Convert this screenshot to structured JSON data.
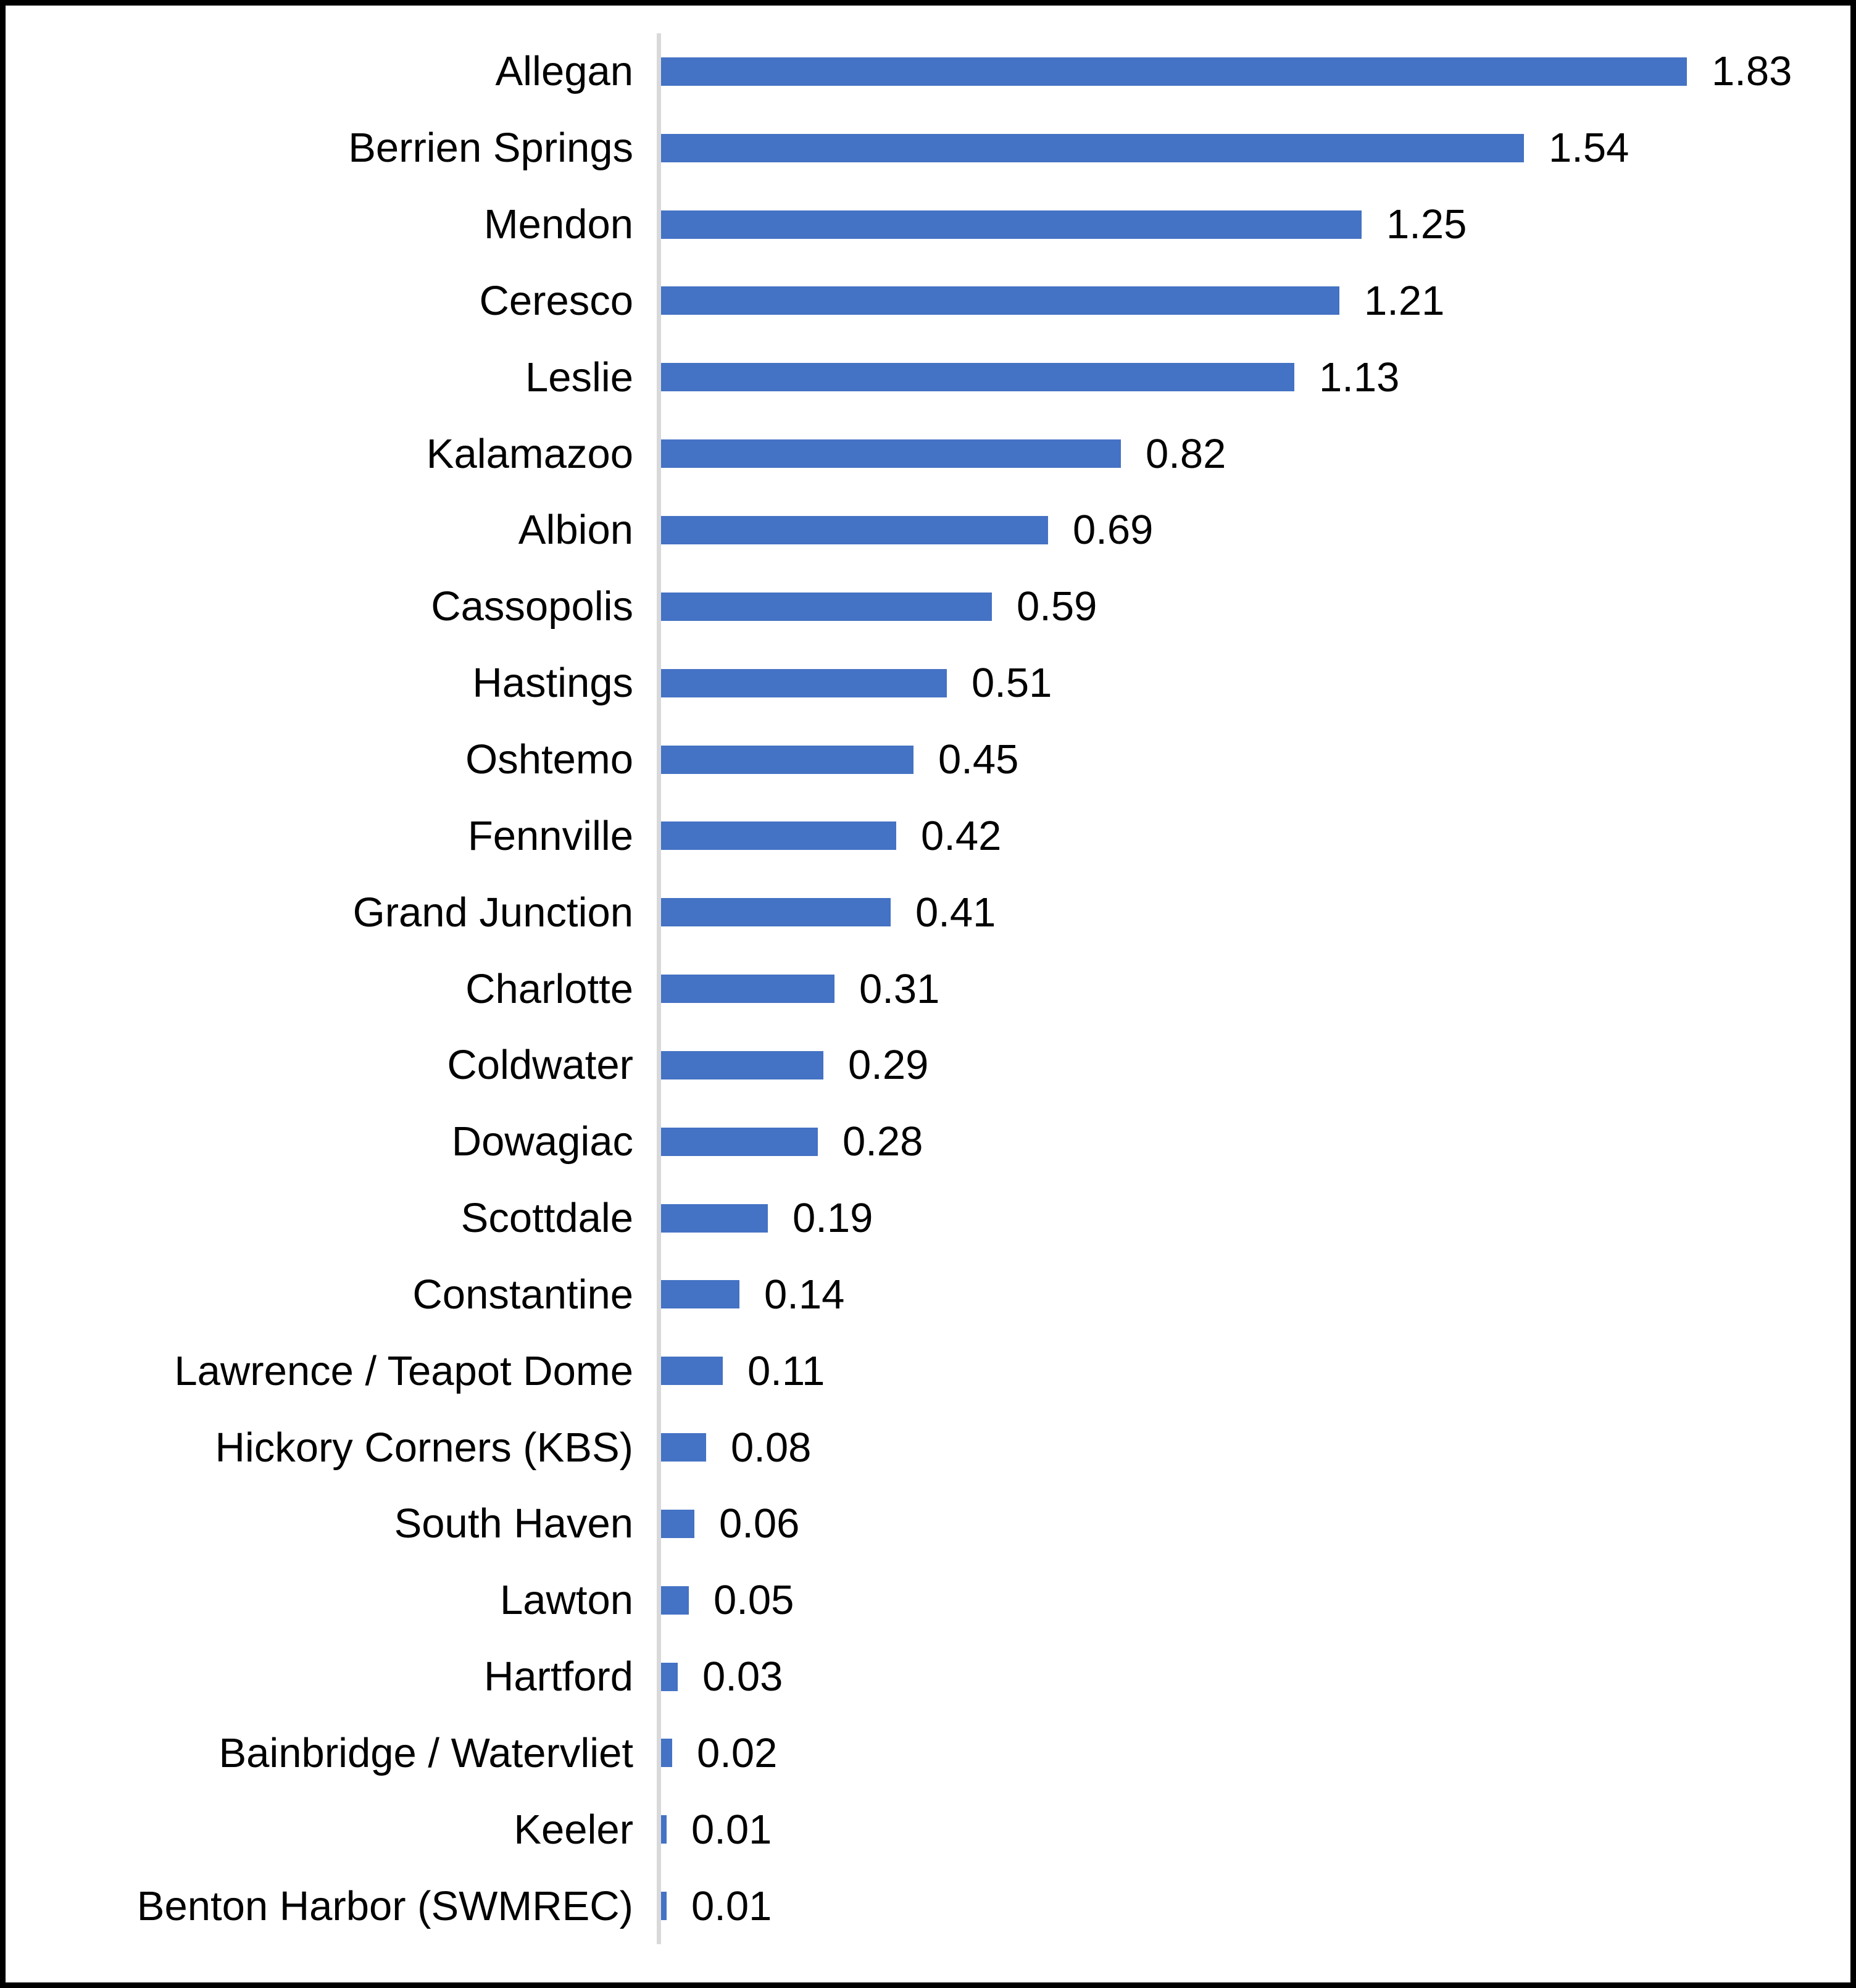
{
  "chart_data": {
    "type": "bar",
    "orientation": "horizontal",
    "title": "",
    "xlabel": "",
    "ylabel": "",
    "grid": false,
    "legend": "none",
    "xlim": [
      0,
      2.0
    ],
    "bar_color": "#4472C4",
    "axis_line_color": "#D9D9D9",
    "frame_border_color": "#000000",
    "categories": [
      "Allegan",
      "Berrien Springs",
      "Mendon",
      "Ceresco",
      "Leslie",
      "Kalamazoo",
      "Albion",
      "Cassopolis",
      "Hastings",
      "Oshtemo",
      "Fennville",
      "Grand Junction",
      "Charlotte",
      "Coldwater",
      "Dowagiac",
      "Scottdale",
      "Constantine",
      "Lawrence / Teapot Dome",
      "Hickory Corners (KBS)",
      "South Haven",
      "Lawton",
      "Hartford",
      "Bainbridge / Watervliet",
      "Keeler",
      "Benton Harbor (SWMREC)"
    ],
    "values": [
      1.83,
      1.54,
      1.25,
      1.21,
      1.13,
      0.82,
      0.69,
      0.59,
      0.51,
      0.45,
      0.42,
      0.41,
      0.31,
      0.29,
      0.28,
      0.19,
      0.14,
      0.11,
      0.08,
      0.06,
      0.05,
      0.03,
      0.02,
      0.01,
      0.01
    ],
    "value_labels": [
      "1.83",
      "1.54",
      "1.25",
      "1.21",
      "1.13",
      "0.82",
      "0.69",
      "0.59",
      "0.51",
      "0.45",
      "0.42",
      "0.41",
      "0.31",
      "0.29",
      "0.28",
      "0.19",
      "0.14",
      "0.11",
      "0.08",
      "0.06",
      "0.05",
      "0.03",
      "0.02",
      "0.01",
      "0.01"
    ]
  }
}
